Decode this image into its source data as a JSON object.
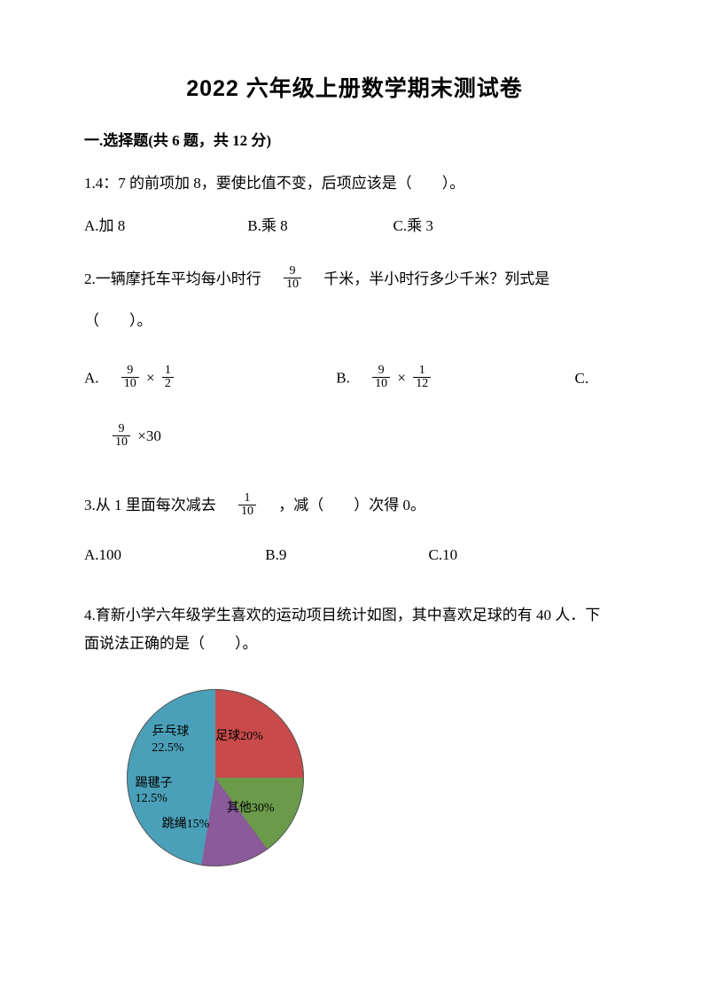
{
  "title": "2022 六年级上册数学期末测试卷",
  "section": {
    "label": "一.选择题(共 6 题，共 12 分)"
  },
  "q1": {
    "text": "1.4：7 的前项加 8，要使比值不变，后项应该是（　　）。",
    "optA": "A.加 8",
    "optB": "B.乘 8",
    "optC": "C.乘 3"
  },
  "q2": {
    "pre": "2.一辆摩托车平均每小时行　",
    "frac": {
      "num": "9",
      "den": "10"
    },
    "post": "　千米，半小时行多少千米？列式是",
    "paren": "（　　）。",
    "A": {
      "label": "A. ",
      "n1": "9",
      "d1": "10",
      "n2": "1",
      "d2": "2",
      "op": " × "
    },
    "B": {
      "label": "B. ",
      "n1": "9",
      "d1": "10",
      "n2": "1",
      "d2": "12",
      "op": " × "
    },
    "C": {
      "label": "C."
    },
    "Cfrac": {
      "n": "9",
      "d": "10",
      "tail": " ×30"
    }
  },
  "q3": {
    "pre": "3.从 1 里面每次减去　",
    "frac": {
      "num": "1",
      "den": "10"
    },
    "post": "　，减（　　）次得 0。",
    "optA": "A.100",
    "optB": "B.9",
    "optC": "C.10"
  },
  "q4": {
    "line1": "4.育新小学六年级学生喜欢的运动项目统计如图，其中喜欢足球的有 40 人．下",
    "line2": "面说法正确的是（　　）。"
  },
  "pie": {
    "type": "pie",
    "background": "#ffffff",
    "slices": [
      {
        "label": "足球20%",
        "value": 20,
        "color": "#4a7ec8",
        "textColor": "#000000"
      },
      {
        "label": "其他30%",
        "value": 30,
        "color": "#c84a4a",
        "textColor": "#000000"
      },
      {
        "label": "跳绳15%",
        "value": 15,
        "color": "#6a9a4a",
        "textColor": "#000000"
      },
      {
        "label": "踢毽子",
        "value": 12.5,
        "color": "#8a5a9a",
        "textColor": "#000000",
        "line2": "12.5%"
      },
      {
        "label": "乒乓球",
        "value": 22.5,
        "color": "#4aa0b8",
        "textColor": "#000000",
        "line2": "22.5%"
      }
    ],
    "startAngleDeg": -90,
    "borderColor": "#585858"
  }
}
